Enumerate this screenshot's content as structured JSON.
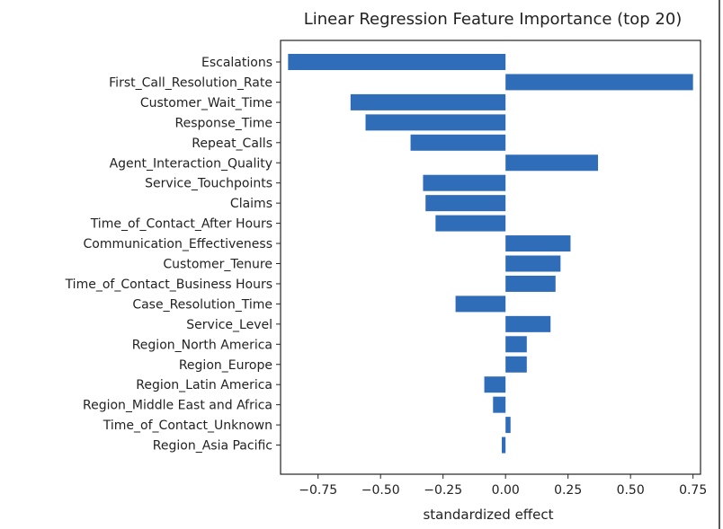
{
  "chart_data": {
    "type": "bar",
    "orientation": "horizontal",
    "title": "Linear Regression Feature Importance (top 20)",
    "xlabel": "standardized effect",
    "ylabel": "",
    "xlim": [
      -0.9,
      0.78
    ],
    "xticks": [
      -0.75,
      -0.5,
      -0.25,
      0.0,
      0.25,
      0.5,
      0.75
    ],
    "xtick_labels": [
      "−0.75",
      "−0.50",
      "−0.25",
      "0.00",
      "0.25",
      "0.50",
      "0.75"
    ],
    "bar_color": "#2f6db9",
    "categories": [
      "Escalations",
      "First_Call_Resolution_Rate",
      "Customer_Wait_Time",
      "Response_Time",
      "Repeat_Calls",
      "Agent_Interaction_Quality",
      "Service_Touchpoints",
      "Claims",
      "Time_of_Contact_After Hours",
      "Communication_Effectiveness",
      "Customer_Tenure",
      "Time_of_Contact_Business Hours",
      "Case_Resolution_Time",
      "Service_Level",
      "Region_North America",
      "Region_Europe",
      "Region_Latin America",
      "Region_Middle East and Africa",
      "Time_of_Contact_Unknown",
      "Region_Asia Pacific"
    ],
    "values": [
      -0.87,
      0.75,
      -0.62,
      -0.56,
      -0.38,
      0.37,
      -0.33,
      -0.32,
      -0.28,
      0.26,
      0.22,
      0.2,
      -0.2,
      0.18,
      0.085,
      0.085,
      -0.085,
      -0.05,
      0.02,
      -0.015
    ]
  }
}
